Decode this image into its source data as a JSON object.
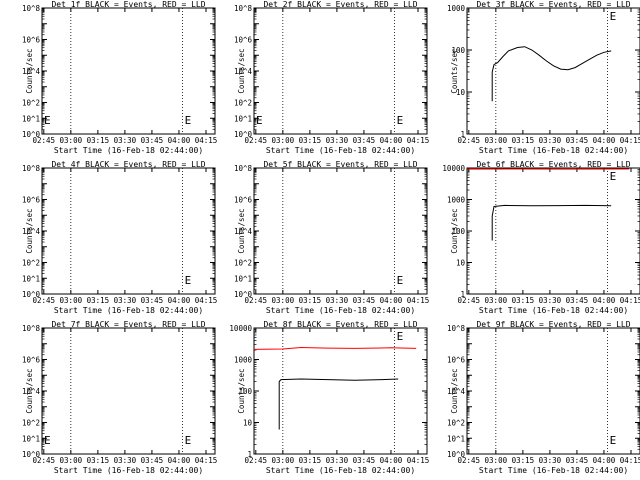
{
  "page": {
    "x_axis_title": "Start Time (16-Feb-18 02:44:00)",
    "y_axis_title": "Counts/sec"
  },
  "x_ticks": [
    "02:45",
    "03:00",
    "03:15",
    "03:30",
    "03:45",
    "04:00",
    "04:15"
  ],
  "colors": {
    "events": "#000000",
    "lld": "#ff0000"
  },
  "chart_data": [
    {
      "type": "line",
      "title": "Det 1f BLACK = Events, RED = LLD",
      "x_axis_label": "Start Time (16-Feb-18 02:44:00)",
      "ylabel": "Counts/sec",
      "yscale": "log",
      "ylim": [
        1,
        100000000
      ],
      "y_ticks": [
        "10^0",
        "10^1",
        "10^2",
        "10^3",
        "10^4",
        "10^5",
        "10^6",
        "10^7",
        "10^8"
      ],
      "y_ticks_shown": [
        "10^0",
        "10^1",
        "10^2",
        "10^4",
        "10^6",
        "10^8"
      ],
      "markers": [
        {
          "label": "E",
          "x": "02:44"
        },
        {
          "label": "E",
          "x": "04:02"
        }
      ],
      "series": []
    },
    {
      "type": "line",
      "title": "Det 2f BLACK = Events, RED = LLD",
      "x_axis_label": "Start Time (16-Feb-18 02:44:00)",
      "ylabel": "Counts/sec",
      "yscale": "log",
      "ylim": [
        1,
        100000000
      ],
      "y_ticks": [
        "10^0",
        "10^1",
        "10^2",
        "10^3",
        "10^4",
        "10^5",
        "10^6",
        "10^7",
        "10^8"
      ],
      "y_ticks_shown": [
        "10^0",
        "10^1",
        "10^2",
        "10^4",
        "10^6",
        "10^8"
      ],
      "markers": [
        {
          "label": "E",
          "x": "02:44"
        },
        {
          "label": "E",
          "x": "04:02"
        }
      ],
      "series": []
    },
    {
      "type": "line",
      "title": "Det 3f BLACK = Events, RED = LLD",
      "x_axis_label": "Start Time (16-Feb-18 02:44:00)",
      "ylabel": "Counts/sec",
      "yscale": "log",
      "ylim": [
        1,
        1000
      ],
      "y_ticks": [
        "1",
        "10",
        "100",
        "1000"
      ],
      "y_ticks_shown": [
        "1",
        "10",
        "100",
        "1000"
      ],
      "markers": [
        {
          "label": "E",
          "x": "04:02"
        }
      ],
      "series": [
        {
          "color": "#000000",
          "points": [
            [
              "02:58",
              6
            ],
            [
              "02:58",
              30
            ],
            [
              "02:59",
              45
            ],
            [
              "03:01",
              50
            ],
            [
              "03:04",
              70
            ],
            [
              "03:07",
              95
            ],
            [
              "03:12",
              115
            ],
            [
              "03:16",
              120
            ],
            [
              "03:20",
              100
            ],
            [
              "03:24",
              75
            ],
            [
              "03:28",
              55
            ],
            [
              "03:32",
              42
            ],
            [
              "03:36",
              35
            ],
            [
              "03:40",
              34
            ],
            [
              "03:44",
              38
            ],
            [
              "03:48",
              48
            ],
            [
              "03:52",
              60
            ],
            [
              "03:56",
              75
            ],
            [
              "04:00",
              88
            ],
            [
              "04:04",
              95
            ]
          ]
        }
      ]
    },
    {
      "type": "line",
      "title": "Det 4f BLACK = Events, RED = LLD",
      "x_axis_label": "Start Time (16-Feb-18 02:44:00)",
      "ylabel": "Counts/sec",
      "yscale": "log",
      "ylim": [
        1,
        100000000
      ],
      "y_ticks": [
        "10^0",
        "10^1",
        "10^2",
        "10^3",
        "10^4",
        "10^5",
        "10^6",
        "10^7",
        "10^8"
      ],
      "y_ticks_shown": [
        "10^0",
        "10^1",
        "10^2",
        "10^4",
        "10^6",
        "10^8"
      ],
      "markers": [
        {
          "label": "E",
          "x": "04:02"
        }
      ],
      "series": []
    },
    {
      "type": "line",
      "title": "Det 5f BLACK = Events, RED = LLD",
      "x_axis_label": "Start Time (16-Feb-18 02:44:00)",
      "ylabel": "Counts/sec",
      "yscale": "log",
      "ylim": [
        1,
        100000000
      ],
      "y_ticks": [
        "10^0",
        "10^1",
        "10^2",
        "10^3",
        "10^4",
        "10^5",
        "10^6",
        "10^7",
        "10^8"
      ],
      "y_ticks_shown": [
        "10^0",
        "10^1",
        "10^2",
        "10^4",
        "10^6",
        "10^8"
      ],
      "markers": [
        {
          "label": "E",
          "x": "04:02"
        }
      ],
      "series": []
    },
    {
      "type": "line",
      "title": "Det 6f BLACK = Events, RED = LLD",
      "x_axis_label": "Start Time (16-Feb-18 02:44:00)",
      "ylabel": "Counts/sec",
      "yscale": "log",
      "ylim": [
        1,
        10000
      ],
      "y_ticks": [
        "1",
        "10",
        "100",
        "1000",
        "10000"
      ],
      "y_ticks_shown": [
        "1",
        "10",
        "100",
        "1000",
        "10000"
      ],
      "markers": [
        {
          "label": "E",
          "x": "04:02"
        }
      ],
      "series": [
        {
          "color": "#ff0000",
          "points": [
            [
              "02:44",
              9200
            ],
            [
              "03:10",
              9300
            ],
            [
              "03:40",
              9200
            ],
            [
              "04:14",
              9300
            ]
          ]
        },
        {
          "color": "#000000",
          "points": [
            [
              "02:58",
              50
            ],
            [
              "02:58",
              300
            ],
            [
              "02:59",
              600
            ],
            [
              "03:05",
              650
            ],
            [
              "03:20",
              630
            ],
            [
              "03:35",
              640
            ],
            [
              "03:50",
              650
            ],
            [
              "04:04",
              630
            ]
          ]
        }
      ]
    },
    {
      "type": "line",
      "title": "Det 7f BLACK = Events, RED = LLD",
      "x_axis_label": "Start Time (16-Feb-18 02:44:00)",
      "ylabel": "Counts/sec",
      "yscale": "log",
      "ylim": [
        1,
        100000000
      ],
      "y_ticks": [
        "10^0",
        "10^1",
        "10^2",
        "10^3",
        "10^4",
        "10^5",
        "10^6",
        "10^7",
        "10^8"
      ],
      "y_ticks_shown": [
        "10^0",
        "10^1",
        "10^2",
        "10^4",
        "10^6",
        "10^8"
      ],
      "markers": [
        {
          "label": "E",
          "x": "02:44"
        },
        {
          "label": "E",
          "x": "04:02"
        }
      ],
      "series": []
    },
    {
      "type": "line",
      "title": "Det 8f BLACK = Events, RED = LLD",
      "x_axis_label": "Start Time (16-Feb-18 02:44:00)",
      "ylabel": "Counts/sec",
      "yscale": "log",
      "ylim": [
        1,
        10000
      ],
      "y_ticks": [
        "1",
        "10",
        "100",
        "1000",
        "10000"
      ],
      "y_ticks_shown": [
        "1",
        "10",
        "100",
        "1000",
        "10000"
      ],
      "markers": [
        {
          "label": "E",
          "x": "04:02"
        }
      ],
      "series": [
        {
          "color": "#ff0000",
          "points": [
            [
              "02:44",
              2100
            ],
            [
              "03:00",
              2150
            ],
            [
              "03:10",
              2400
            ],
            [
              "03:25",
              2300
            ],
            [
              "03:40",
              2250
            ],
            [
              "04:00",
              2350
            ],
            [
              "04:14",
              2250
            ]
          ]
        },
        {
          "color": "#000000",
          "points": [
            [
              "02:58",
              6
            ],
            [
              "02:58",
              200
            ],
            [
              "02:59",
              230
            ],
            [
              "03:10",
              240
            ],
            [
              "03:25",
              230
            ],
            [
              "03:40",
              220
            ],
            [
              "03:55",
              230
            ],
            [
              "04:04",
              240
            ]
          ]
        }
      ]
    },
    {
      "type": "line",
      "title": "Det 9f BLACK = Events, RED = LLD",
      "x_axis_label": "Start Time (16-Feb-18 02:44:00)",
      "ylabel": "Counts/sec",
      "yscale": "log",
      "ylim": [
        1,
        100000000
      ],
      "y_ticks": [
        "10^0",
        "10^1",
        "10^2",
        "10^3",
        "10^4",
        "10^5",
        "10^6",
        "10^7",
        "10^8"
      ],
      "y_ticks_shown": [
        "10^0",
        "10^1",
        "10^2",
        "10^4",
        "10^6",
        "10^8"
      ],
      "markers": [
        {
          "label": "E",
          "x": "04:02"
        }
      ],
      "series": []
    }
  ]
}
